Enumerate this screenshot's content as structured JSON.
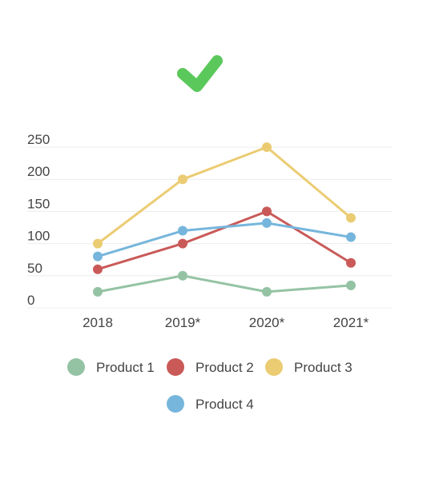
{
  "status": {
    "icon": "checkmark-icon",
    "color": "#5bc85b"
  },
  "chart_data": {
    "type": "line",
    "categories": [
      "2018",
      "2019*",
      "2020*",
      "2021*"
    ],
    "ylim": [
      0,
      250
    ],
    "yticks": [
      "0",
      "50",
      "100",
      "150",
      "200",
      "250"
    ],
    "grid": true,
    "legend_position": "bottom",
    "series": [
      {
        "name": "Product 1",
        "color": "#94c3a4",
        "values": [
          25,
          50,
          25,
          35
        ]
      },
      {
        "name": "Product 2",
        "color": "#c95a58",
        "values": [
          60,
          100,
          150,
          70
        ]
      },
      {
        "name": "Product 3",
        "color": "#ebcc73",
        "values": [
          100,
          200,
          250,
          140
        ]
      },
      {
        "name": "Product 4",
        "color": "#76b6dc",
        "values": [
          80,
          120,
          132,
          110
        ]
      }
    ]
  }
}
